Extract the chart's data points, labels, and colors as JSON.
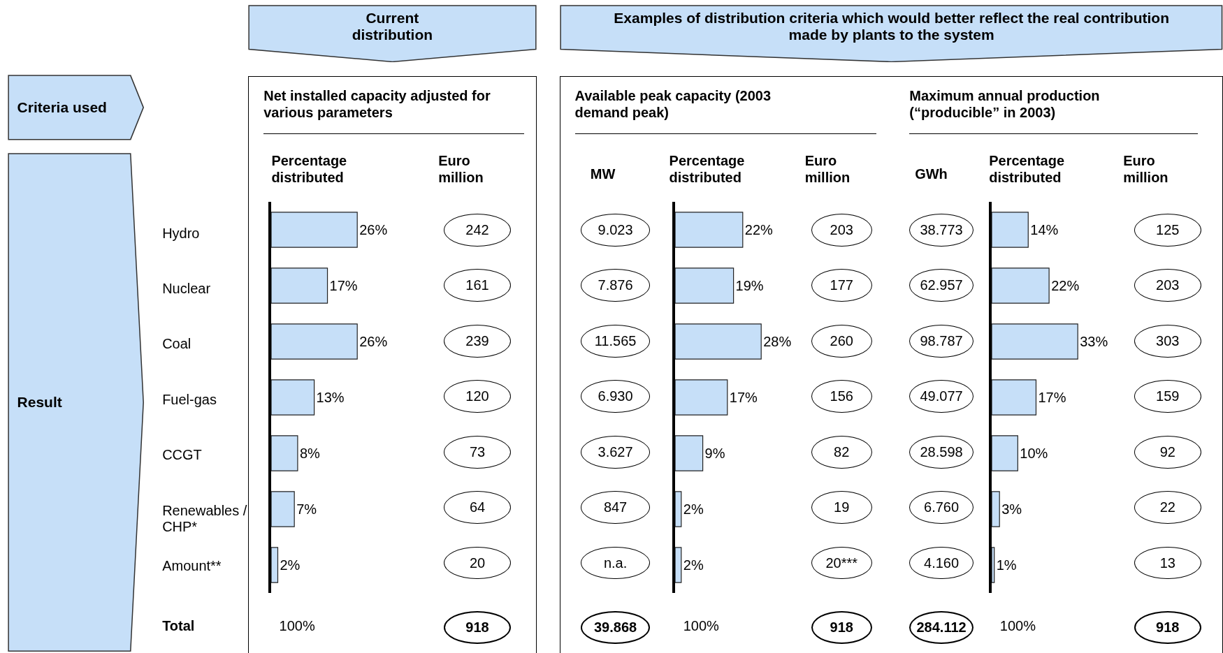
{
  "chart_data": [
    {
      "type": "other",
      "title": "Current distribution"
    },
    {
      "type": "other",
      "title": "Examples of distribution criteria which would better reflect the real contribution made by plants to the system"
    },
    {
      "type": "other",
      "title": "Criteria used"
    },
    {
      "type": "other",
      "title": "Result"
    },
    {
      "type": "other",
      "title": "Net installed capacity adjusted for various parameters"
    },
    {
      "type": "other",
      "title": "Available peak capacity (2003 demand peak)"
    },
    {
      "type": "other",
      "title": "Maximum annual production (“producible” in 2003)"
    },
    {
      "type": "bar",
      "orientation": "horizontal",
      "title": "Percentage distributed",
      "categories": [
        "Hydro",
        "Nuclear",
        "Coal",
        "Fuel-gas",
        "CCGT",
        "Renewables /\nCHP*",
        "Amount**"
      ],
      "values": [
        26,
        17,
        26,
        13,
        8,
        7,
        2
      ],
      "value_labels": [
        "26%",
        "17%",
        "26%",
        "13%",
        "8%",
        "7%",
        "2%"
      ],
      "color": "#c6dff8",
      "tick_labels": "y",
      "annotations": [
        "100%"
      ]
    },
    {
      "type": "other",
      "title": "Euro million",
      "annotations": [
        "242",
        "161",
        "239",
        "120",
        "73",
        "64",
        "20",
        "918"
      ]
    },
    {
      "type": "other",
      "title": "MW",
      "annotations": [
        "9.023",
        "7.876",
        "11.565",
        "6.930",
        "3.627",
        "847",
        "n.a.",
        "39.868"
      ]
    },
    {
      "type": "bar",
      "orientation": "horizontal",
      "title": "Percentage distributed",
      "categories": [
        null,
        null,
        null,
        null,
        null,
        null,
        null
      ],
      "values": [
        22,
        19,
        28,
        17,
        9,
        2,
        2
      ],
      "value_labels": [
        "22%",
        "19%",
        "28%",
        "17%",
        "9%",
        "2%",
        "2%"
      ],
      "color": "#c6dff8",
      "tick_labels": false,
      "annotations": [
        "100%"
      ]
    },
    {
      "type": "other",
      "title": "Euro million",
      "annotations": [
        "203",
        "177",
        "260",
        "156",
        "82",
        "19",
        "20***",
        "918"
      ]
    },
    {
      "type": "other",
      "title": "GWh",
      "annotations": [
        "38.773",
        "62.957",
        "98.787",
        "49.077",
        "28.598",
        "6.760",
        "4.160",
        "284.112"
      ]
    },
    {
      "type": "bar",
      "orientation": "horizontal",
      "title": "Percentage distributed",
      "categories": [
        null,
        null,
        null,
        null,
        null,
        null,
        null
      ],
      "values": [
        14,
        22,
        33,
        17,
        10,
        3,
        1
      ],
      "value_labels": [
        "14%",
        "22%",
        "33%",
        "17%",
        "10%",
        "3%",
        "1%"
      ],
      "color": "#c6dff8",
      "tick_labels": false,
      "annotations": [
        "100%"
      ]
    },
    {
      "type": "other",
      "title": "Euro million",
      "annotations": [
        "125",
        "203",
        "303",
        "159",
        "92",
        "22",
        "13",
        "918"
      ]
    },
    {
      "type": "other",
      "title": "Total"
    }
  ]
}
